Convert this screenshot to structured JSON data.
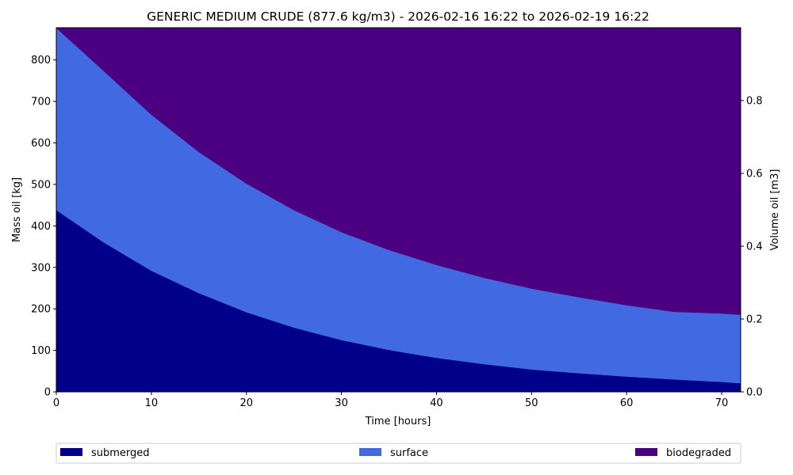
{
  "chart_data": {
    "type": "area",
    "stacked": true,
    "title": "GENERIC MEDIUM CRUDE (877.6 kg/m3) - 2026-02-16 16:22 to 2026-02-19 16:22",
    "xlabel": "Time  [hours]",
    "ylabel": "Mass oil  [kg]",
    "y2label": "Volume oil [m3]",
    "xlim": [
      0,
      72
    ],
    "ylim": [
      0,
      877.6
    ],
    "y2lim": [
      0,
      1.0
    ],
    "xticks": [
      0,
      10,
      20,
      30,
      40,
      50,
      60,
      70
    ],
    "yticks": [
      0,
      100,
      200,
      300,
      400,
      500,
      600,
      700,
      800
    ],
    "y2ticks": [
      0.0,
      0.2,
      0.4,
      0.6,
      0.8
    ],
    "y2tick_labels": [
      "0.0",
      "0.2",
      "0.4",
      "0.6",
      "0.8"
    ],
    "grid": false,
    "legend_position": "bottom",
    "x": [
      0,
      5,
      10,
      15,
      20,
      25,
      30,
      35,
      40,
      45,
      50,
      55,
      60,
      65,
      70,
      72
    ],
    "series": [
      {
        "name": "submerged",
        "color": "#00008b",
        "values": [
          438,
          360,
          292,
          238,
          192,
          155,
          125,
          101,
          82,
          67,
          54,
          45,
          37,
          30,
          24,
          21
        ]
      },
      {
        "name": "surface",
        "color": "#4169e1",
        "values": [
          439,
          413,
          376,
          340,
          310,
          283,
          260,
          241,
          224,
          208,
          195,
          183,
          172,
          163,
          165,
          165
        ]
      },
      {
        "name": "biodegraded",
        "color": "#4b0082",
        "values": [
          0.6,
          104.6,
          209.6,
          299.6,
          375.6,
          439.6,
          492.6,
          535.6,
          571.6,
          602.6,
          628.6,
          649.6,
          668.6,
          684.6,
          688.6,
          691.6
        ]
      }
    ]
  }
}
